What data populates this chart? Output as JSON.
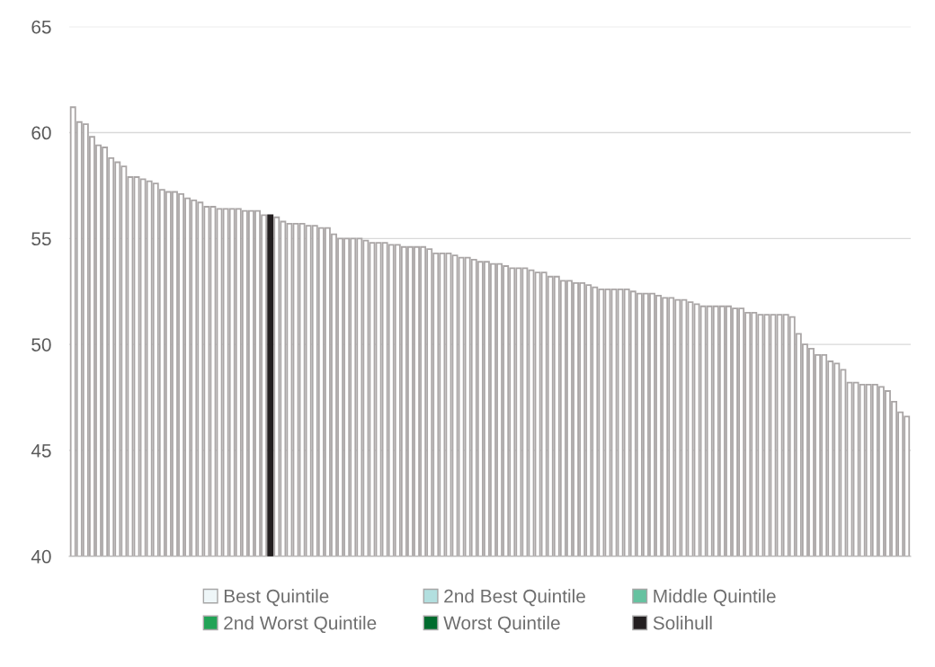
{
  "chart_data": {
    "type": "bar",
    "categories": [
      null,
      null,
      null,
      null,
      null,
      null,
      null,
      null,
      null,
      null,
      null,
      null,
      null,
      null,
      null,
      null,
      null,
      null,
      null,
      null,
      null,
      null,
      null,
      null,
      null,
      null,
      null,
      null,
      null,
      null,
      null,
      null,
      null,
      null,
      null,
      null,
      null,
      null,
      null,
      null,
      null,
      null,
      null,
      null,
      null,
      null,
      null,
      null,
      null,
      null,
      null,
      null,
      null,
      null,
      null,
      null,
      null,
      null,
      null,
      null,
      null,
      null,
      null,
      null,
      null,
      null,
      null,
      null,
      null,
      null,
      null,
      null,
      null,
      null,
      null,
      null,
      null,
      null,
      null,
      null,
      null,
      null,
      null,
      null,
      null,
      null,
      null,
      null,
      null,
      null,
      null,
      null,
      null,
      null,
      null,
      null,
      null,
      null,
      null,
      null,
      null,
      null,
      null,
      null,
      null,
      null,
      null,
      null,
      null,
      null,
      null,
      null,
      null,
      null,
      null,
      null,
      null,
      null,
      null,
      null,
      null,
      null,
      null,
      null,
      null,
      null,
      null,
      null,
      null,
      null,
      null,
      null
    ],
    "series": [
      {
        "color": "#ffffff",
        "values": [
          61.2,
          60.5,
          60.4,
          59.8,
          59.4,
          59.3,
          58.8,
          58.6,
          58.4,
          57.9,
          57.9,
          57.8,
          57.7,
          57.6,
          57.3,
          57.2,
          57.2,
          57.1,
          56.9,
          56.8,
          56.7,
          56.5,
          56.5,
          56.4,
          56.4,
          56.4,
          56.4,
          56.3,
          56.3,
          56.3,
          56.1,
          null,
          56.0,
          55.8,
          55.7,
          55.7,
          55.7,
          55.6,
          55.6,
          55.5,
          55.5,
          55.2,
          55.0,
          55.0,
          55.0,
          55.0,
          54.9,
          54.8,
          54.8,
          54.8,
          54.7,
          54.7,
          54.6,
          54.6,
          54.6,
          54.6,
          54.5,
          54.3,
          54.3,
          54.3,
          54.2,
          54.1,
          54.1,
          54.0,
          53.9,
          53.9,
          53.8,
          53.8,
          53.7,
          53.6,
          53.6,
          53.6,
          53.5,
          53.4,
          53.4,
          53.2,
          53.2,
          53.0,
          53.0,
          52.9,
          52.9,
          52.8,
          52.7,
          52.6,
          52.6,
          52.6,
          52.6,
          52.6,
          52.5,
          52.4,
          52.4,
          52.4,
          52.3,
          52.2,
          52.2,
          52.1,
          52.1,
          52.0,
          51.9,
          51.8,
          51.8,
          51.8,
          51.8,
          51.8,
          51.7,
          51.7,
          51.5,
          51.5,
          51.4,
          51.4,
          51.4,
          51.4,
          51.4,
          51.3,
          50.5,
          50.0,
          49.8,
          49.5,
          49.5,
          49.2,
          49.1,
          48.8,
          48.2,
          48.2,
          48.1,
          48.1,
          48.1,
          48.0,
          47.8,
          47.3,
          46.8,
          46.6
        ]
      },
      {
        "name": "Best Quintile",
        "color": "#eef6f8",
        "values": [
          null,
          null,
          null,
          null,
          null,
          null,
          null,
          null,
          null,
          null,
          null,
          null,
          null,
          null,
          null,
          null,
          null,
          null,
          null,
          null,
          null,
          null,
          null,
          null,
          null,
          null,
          null,
          null,
          null,
          null,
          null,
          null,
          null,
          null,
          null,
          null,
          null,
          null,
          null,
          null,
          null,
          null,
          null,
          null,
          null,
          null,
          null,
          null,
          null,
          null,
          null,
          null,
          null,
          null,
          null,
          null,
          null,
          null,
          null,
          null,
          null,
          null,
          null,
          null,
          null,
          null,
          null,
          null,
          null,
          null,
          null,
          null,
          null,
          null,
          null,
          null,
          null,
          null,
          null,
          null,
          null,
          null,
          null,
          null,
          null,
          null,
          null,
          null,
          null,
          null,
          null,
          null,
          null,
          null,
          null,
          null,
          null,
          null,
          null,
          null,
          null,
          null,
          null,
          null,
          null,
          null,
          null,
          null,
          null,
          null,
          null,
          null,
          null,
          null,
          null,
          null,
          null,
          null,
          null,
          null,
          null,
          null,
          null,
          null,
          null,
          null,
          null,
          null,
          null,
          null,
          null,
          null
        ]
      },
      {
        "name": "2nd Best Quintile",
        "color": "#b2dfdf",
        "values": [
          null,
          null,
          null,
          null,
          null,
          null,
          null,
          null,
          null,
          null,
          null,
          null,
          null,
          null,
          null,
          null,
          null,
          null,
          null,
          null,
          null,
          null,
          null,
          null,
          null,
          null,
          null,
          null,
          null,
          null,
          null,
          null,
          null,
          null,
          null,
          null,
          null,
          null,
          null,
          null,
          null,
          null,
          null,
          null,
          null,
          null,
          null,
          null,
          null,
          null,
          null,
          null,
          null,
          null,
          null,
          null,
          null,
          null,
          null,
          null,
          null,
          null,
          null,
          null,
          null,
          null,
          null,
          null,
          null,
          null,
          null,
          null,
          null,
          null,
          null,
          null,
          null,
          null,
          null,
          null,
          null,
          null,
          null,
          null,
          null,
          null,
          null,
          null,
          null,
          null,
          null,
          null,
          null,
          null,
          null,
          null,
          null,
          null,
          null,
          null,
          null,
          null,
          null,
          null,
          null,
          null,
          null,
          null,
          null,
          null,
          null,
          null,
          null,
          null,
          null,
          null,
          null,
          null,
          null,
          null,
          null,
          null,
          null,
          null,
          null,
          null,
          null,
          null,
          null,
          null,
          null,
          null
        ]
      },
      {
        "name": "Middle Quintile",
        "color": "#66c2a0",
        "values": [
          null,
          null,
          null,
          null,
          null,
          null,
          null,
          null,
          null,
          null,
          null,
          null,
          null,
          null,
          null,
          null,
          null,
          null,
          null,
          null,
          null,
          null,
          null,
          null,
          null,
          null,
          null,
          null,
          null,
          null,
          null,
          null,
          null,
          null,
          null,
          null,
          null,
          null,
          null,
          null,
          null,
          null,
          null,
          null,
          null,
          null,
          null,
          null,
          null,
          null,
          null,
          null,
          null,
          null,
          null,
          null,
          null,
          null,
          null,
          null,
          null,
          null,
          null,
          null,
          null,
          null,
          null,
          null,
          null,
          null,
          null,
          null,
          null,
          null,
          null,
          null,
          null,
          null,
          null,
          null,
          null,
          null,
          null,
          null,
          null,
          null,
          null,
          null,
          null,
          null,
          null,
          null,
          null,
          null,
          null,
          null,
          null,
          null,
          null,
          null,
          null,
          null,
          null,
          null,
          null,
          null,
          null,
          null,
          null,
          null,
          null,
          null,
          null,
          null,
          null,
          null,
          null,
          null,
          null,
          null,
          null,
          null,
          null,
          null,
          null,
          null,
          null,
          null,
          null,
          null,
          null,
          null
        ]
      },
      {
        "name": "2nd Worst Quintile",
        "color": "#21a356",
        "values": [
          null,
          null,
          null,
          null,
          null,
          null,
          null,
          null,
          null,
          null,
          null,
          null,
          null,
          null,
          null,
          null,
          null,
          null,
          null,
          null,
          null,
          null,
          null,
          null,
          null,
          null,
          null,
          null,
          null,
          null,
          null,
          null,
          null,
          null,
          null,
          null,
          null,
          null,
          null,
          null,
          null,
          null,
          null,
          null,
          null,
          null,
          null,
          null,
          null,
          null,
          null,
          null,
          null,
          null,
          null,
          null,
          null,
          null,
          null,
          null,
          null,
          null,
          null,
          null,
          null,
          null,
          null,
          null,
          null,
          null,
          null,
          null,
          null,
          null,
          null,
          null,
          null,
          null,
          null,
          null,
          null,
          null,
          null,
          null,
          null,
          null,
          null,
          null,
          null,
          null,
          null,
          null,
          null,
          null,
          null,
          null,
          null,
          null,
          null,
          null,
          null,
          null,
          null,
          null,
          null,
          null,
          null,
          null,
          null,
          null,
          null,
          null,
          null,
          null,
          null,
          null,
          null,
          null,
          null,
          null,
          null,
          null,
          null,
          null,
          null,
          null,
          null,
          null,
          null,
          null,
          null,
          null
        ]
      },
      {
        "name": "Worst Quintile",
        "color": "#006b2e",
        "values": [
          null,
          null,
          null,
          null,
          null,
          null,
          null,
          null,
          null,
          null,
          null,
          null,
          null,
          null,
          null,
          null,
          null,
          null,
          null,
          null,
          null,
          null,
          null,
          null,
          null,
          null,
          null,
          null,
          null,
          null,
          null,
          null,
          null,
          null,
          null,
          null,
          null,
          null,
          null,
          null,
          null,
          null,
          null,
          null,
          null,
          null,
          null,
          null,
          null,
          null,
          null,
          null,
          null,
          null,
          null,
          null,
          null,
          null,
          null,
          null,
          null,
          null,
          null,
          null,
          null,
          null,
          null,
          null,
          null,
          null,
          null,
          null,
          null,
          null,
          null,
          null,
          null,
          null,
          null,
          null,
          null,
          null,
          null,
          null,
          null,
          null,
          null,
          null,
          null,
          null,
          null,
          null,
          null,
          null,
          null,
          null,
          null,
          null,
          null,
          null,
          null,
          null,
          null,
          null,
          null,
          null,
          null,
          null,
          null,
          null,
          null,
          null,
          null,
          null,
          null,
          null,
          null,
          null,
          null,
          null,
          null,
          null,
          null,
          null,
          null,
          null,
          null,
          null,
          null,
          null,
          null,
          null
        ]
      },
      {
        "name": "Solihull",
        "color": "#231f20",
        "values": [
          null,
          null,
          null,
          null,
          null,
          null,
          null,
          null,
          null,
          null,
          null,
          null,
          null,
          null,
          null,
          null,
          null,
          null,
          null,
          null,
          null,
          null,
          null,
          null,
          null,
          null,
          null,
          null,
          null,
          null,
          null,
          56.1,
          null,
          null,
          null,
          null,
          null,
          null,
          null,
          null,
          null,
          null,
          null,
          null,
          null,
          null,
          null,
          null,
          null,
          null,
          null,
          null,
          null,
          null,
          null,
          null,
          null,
          null,
          null,
          null,
          null,
          null,
          null,
          null,
          null,
          null,
          null,
          null,
          null,
          null,
          null,
          null,
          null,
          null,
          null,
          null,
          null,
          null,
          null,
          null,
          null,
          null,
          null,
          null,
          null,
          null,
          null,
          null,
          null,
          null,
          null,
          null,
          null,
          null,
          null,
          null,
          null,
          null,
          null,
          null,
          null,
          null,
          null,
          null,
          null,
          null,
          null,
          null,
          null,
          null,
          null,
          null,
          null,
          null,
          null,
          null,
          null,
          null,
          null,
          null,
          null,
          null,
          null,
          null,
          null,
          null,
          null,
          null,
          null,
          null,
          null,
          null
        ]
      }
    ],
    "ylim": [
      40,
      65
    ],
    "yticks": [
      40,
      45,
      50,
      55,
      60,
      65
    ],
    "grid": "y",
    "legend": "bottom"
  }
}
